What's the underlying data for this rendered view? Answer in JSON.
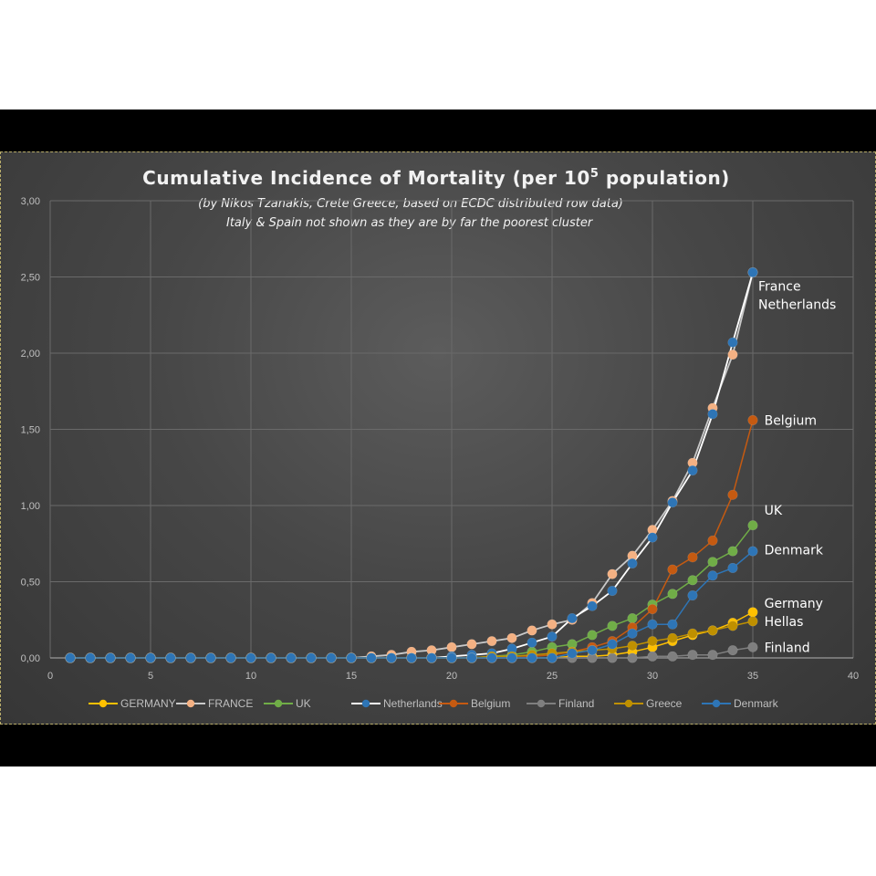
{
  "chart_data": {
    "type": "line",
    "title_main": "Cumulative Incidence of Mortality (per 10",
    "title_sup": "5",
    "title_end": " population)",
    "subtitle_lines": [
      "(by Nikos Tzanakis, Crete Greece, based on ECDC distributed row data)",
      "Italy & Spain not shown as they are by far the poorest cluster"
    ],
    "xlim": [
      0,
      40
    ],
    "ylim": [
      0,
      3
    ],
    "x_ticks": [
      "0",
      "5",
      "10",
      "15",
      "20",
      "25",
      "30",
      "35",
      "40"
    ],
    "y_ticks": [
      "0,00",
      "0,50",
      "1,00",
      "1,50",
      "2,00",
      "2,50",
      "3,00"
    ],
    "grid": true,
    "legend_position": "bottom",
    "x": [
      1,
      2,
      3,
      4,
      5,
      6,
      7,
      8,
      9,
      10,
      11,
      12,
      13,
      14,
      15,
      16,
      17,
      18,
      19,
      20,
      21,
      22,
      23,
      24,
      25,
      26,
      27,
      28,
      29,
      30,
      31,
      32,
      33,
      34,
      35
    ],
    "series": [
      {
        "name": "GERMANY",
        "color": "#ffc000",
        "marker": "#ffc000",
        "line_width": 1.5,
        "values": [
          0,
          0,
          0,
          0,
          0,
          0,
          0,
          0,
          0,
          0,
          0,
          0,
          0,
          0,
          0,
          0,
          0,
          0,
          0,
          0,
          0,
          0,
          0,
          0,
          0,
          0.01,
          0.01,
          0.02,
          0.04,
          0.07,
          0.11,
          0.15,
          0.18,
          0.23,
          0.3
        ]
      },
      {
        "name": "FRANCE",
        "color": "#c9c9c9",
        "marker": "#f4b183",
        "line_width": 1.8,
        "values": [
          0,
          0,
          0,
          0,
          0,
          0,
          0,
          0,
          0,
          0,
          0,
          0,
          0,
          0,
          0,
          0.01,
          0.02,
          0.04,
          0.05,
          0.07,
          0.09,
          0.11,
          0.13,
          0.18,
          0.22,
          0.25,
          0.36,
          0.55,
          0.67,
          0.84,
          1.03,
          1.28,
          1.64,
          1.99,
          2.53
        ]
      },
      {
        "name": "UK",
        "color": "#70ad47",
        "marker": "#70ad47",
        "line_width": 1.5,
        "values": [
          0,
          0,
          0,
          0,
          0,
          0,
          0,
          0,
          0,
          0,
          0,
          0,
          0,
          0,
          0,
          0,
          0,
          0,
          0,
          0,
          0,
          0.01,
          0.02,
          0.04,
          0.07,
          0.09,
          0.15,
          0.21,
          0.26,
          0.35,
          0.42,
          0.51,
          0.63,
          0.7,
          0.87
        ]
      },
      {
        "name": "Netherlands",
        "color": "#ffffff",
        "marker": "#2e75b6",
        "line_width": 1.8,
        "values": [
          0,
          0,
          0,
          0,
          0,
          0,
          0,
          0,
          0,
          0,
          0,
          0,
          0,
          0,
          0,
          0,
          0,
          0,
          0,
          0.01,
          0.02,
          0.03,
          0.06,
          0.1,
          0.14,
          0.26,
          0.34,
          0.44,
          0.62,
          0.79,
          1.02,
          1.23,
          1.6,
          2.07,
          2.53
        ]
      },
      {
        "name": "Belgium",
        "color": "#c55a11",
        "marker": "#c55a11",
        "line_width": 1.5,
        "values": [
          0,
          0,
          0,
          0,
          0,
          0,
          0,
          0,
          0,
          0,
          0,
          0,
          0,
          0,
          0,
          0,
          0,
          0,
          0,
          0,
          0,
          0,
          0,
          0.01,
          0.02,
          0.04,
          0.07,
          0.11,
          0.2,
          0.32,
          0.58,
          0.66,
          0.77,
          1.07,
          1.56
        ]
      },
      {
        "name": "Finland",
        "color": "#7f7f7f",
        "marker": "#7f7f7f",
        "line_width": 1.5,
        "values": [
          0,
          0,
          0,
          0,
          0,
          0,
          0,
          0,
          0,
          0,
          0,
          0,
          0,
          0,
          0,
          0,
          0,
          0,
          0,
          0,
          0,
          0,
          0,
          0,
          0,
          0,
          0,
          0,
          0,
          0.01,
          0.01,
          0.02,
          0.02,
          0.05,
          0.07
        ]
      },
      {
        "name": "Greece",
        "color": "#bf9000",
        "marker": "#bf9000",
        "line_width": 1.5,
        "values": [
          0,
          0,
          0,
          0,
          0,
          0,
          0,
          0,
          0,
          0,
          0,
          0,
          0,
          0,
          0,
          0,
          0,
          0,
          0,
          0,
          0,
          0.01,
          0.01,
          0.02,
          0.03,
          0.04,
          0.05,
          0.06,
          0.08,
          0.11,
          0.13,
          0.16,
          0.18,
          0.21,
          0.24
        ]
      },
      {
        "name": "Denmark",
        "color": "#2e75b6",
        "marker": "#2e75b6",
        "line_width": 1.5,
        "values": [
          0,
          0,
          0,
          0,
          0,
          0,
          0,
          0,
          0,
          0,
          0,
          0,
          0,
          0,
          0,
          0,
          0,
          0,
          0,
          0,
          0,
          0,
          0,
          0,
          0,
          0.03,
          0.05,
          0.09,
          0.16,
          0.22,
          0.22,
          0.41,
          0.54,
          0.59,
          0.7
        ]
      }
    ],
    "annotations": [
      {
        "text": "France",
        "x": 35,
        "y": 2.44
      },
      {
        "text": "Netherlands",
        "x": 35,
        "y": 2.32
      },
      {
        "text": "Belgium",
        "x": 35.3,
        "y": 1.56
      },
      {
        "text": "UK",
        "x": 35.3,
        "y": 0.97
      },
      {
        "text": "Denmark",
        "x": 35.3,
        "y": 0.71
      },
      {
        "text": "Germany",
        "x": 35.3,
        "y": 0.36
      },
      {
        "text": "Hellas",
        "x": 35.3,
        "y": 0.24
      },
      {
        "text": "Finland",
        "x": 35.3,
        "y": 0.07
      }
    ]
  }
}
